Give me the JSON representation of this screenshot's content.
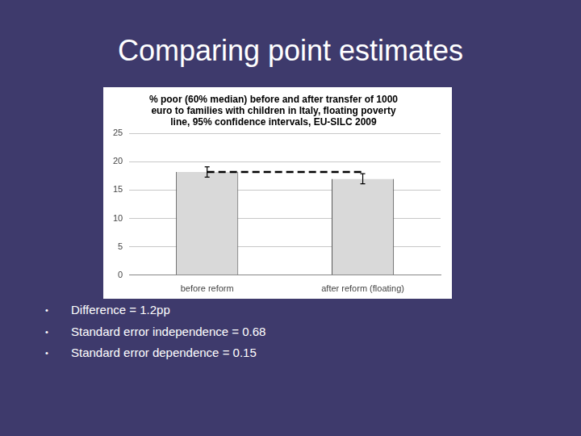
{
  "heading": "Comparing point estimates",
  "chart_data": {
    "type": "bar",
    "title": [
      "% poor (60% median) before and after transfer of 1000",
      "euro to families with children in Italy, floating poverty",
      "line, 95% confidence intervals, EU-SILC 2009"
    ],
    "categories": [
      "before reform",
      "after reform (floating)"
    ],
    "values": [
      18.2,
      17.0
    ],
    "errors": [
      0.9,
      0.9
    ],
    "reference_line": 18.2,
    "color": "#d9d9d9",
    "ylim": [
      0,
      25
    ],
    "yticks": [
      0,
      5,
      10,
      15,
      20,
      25
    ],
    "grid": true
  },
  "bullets": [
    "Difference = 1.2pp",
    "Standard error independence = 0.68",
    "Standard error dependence = 0.15"
  ]
}
